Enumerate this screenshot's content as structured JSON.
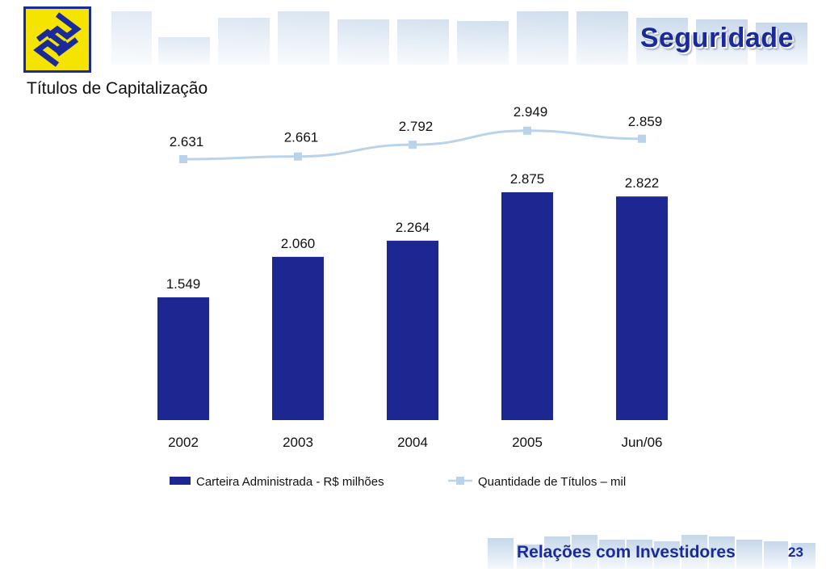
{
  "header": {
    "section_title": "Seguridade",
    "logo_icon": "banco-do-brasil-logo-icon",
    "accent_color": "#1a2a9a",
    "logo_color": "#f5e400"
  },
  "page": {
    "subtitle": "Títulos de Capitalização"
  },
  "chart_data": {
    "type": "bar",
    "title": "",
    "categories": [
      "2002",
      "2003",
      "2004",
      "2005",
      "Jun/06"
    ],
    "series": [
      {
        "name": "Carteira Administrada - R$ milhões",
        "type": "bar",
        "values": [
          1549,
          2060,
          2264,
          2875,
          2822
        ],
        "labels": [
          "1.549",
          "2.060",
          "2.264",
          "2.875",
          "2.822"
        ],
        "color": "#1c2792"
      },
      {
        "name": "Quantidade de Títulos – mil",
        "type": "line",
        "values": [
          2631,
          2661,
          2792,
          2949,
          2859
        ],
        "labels": [
          "2.631",
          "2.661",
          "2.792",
          "2.949",
          "2.859"
        ],
        "color": "#b9d3ea"
      }
    ],
    "xlabel": "",
    "ylabel": "",
    "legend_position": "bottom",
    "grid": false
  },
  "footer": {
    "text": "Relações com Investidores",
    "page_number": "23"
  }
}
